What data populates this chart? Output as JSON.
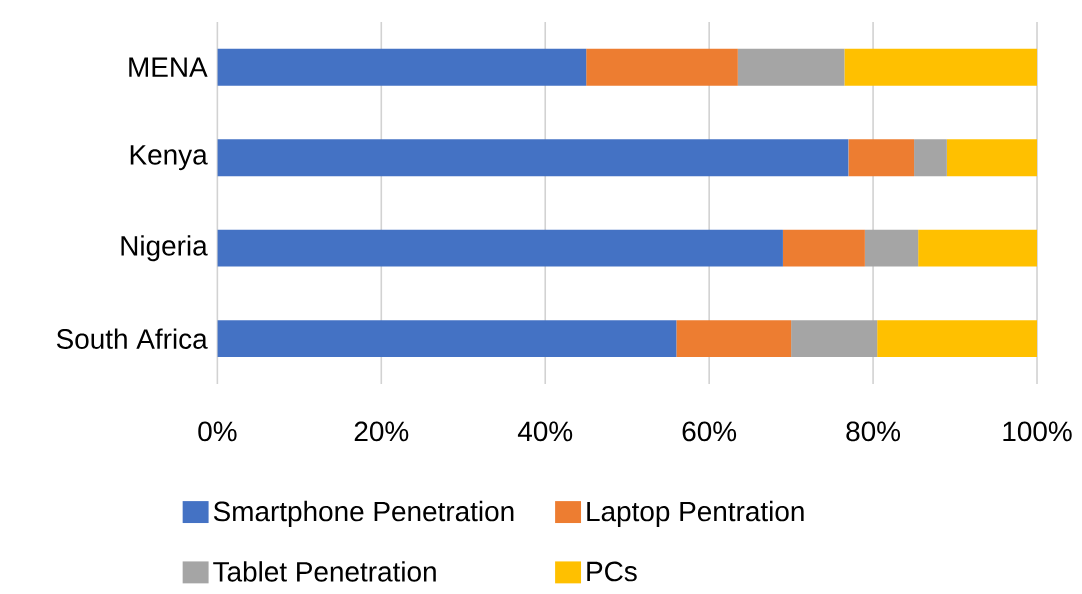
{
  "chart_data": {
    "type": "bar",
    "orientation": "horizontal",
    "stacked": true,
    "categories": [
      "MENA",
      "Kenya",
      "Nigeria",
      "South Africa"
    ],
    "series": [
      {
        "name": "Smartphone Penetration",
        "color": "#4472c4",
        "values": [
          45,
          77,
          69,
          56
        ]
      },
      {
        "name": "Laptop Pentration",
        "color": "#ed7d31",
        "values": [
          18.5,
          8,
          10,
          14
        ]
      },
      {
        "name": "Tablet Penetration",
        "color": "#a5a5a5",
        "values": [
          13,
          4,
          6.5,
          10.5
        ]
      },
      {
        "name": "PCs",
        "color": "#ffc000",
        "values": [
          23.5,
          11,
          14.5,
          19.5
        ]
      }
    ],
    "xlim": [
      0,
      100
    ],
    "xticks": [
      {
        "value": 0,
        "label": "0%"
      },
      {
        "value": 20,
        "label": "20%"
      },
      {
        "value": 40,
        "label": "40%"
      },
      {
        "value": 60,
        "label": "60%"
      },
      {
        "value": 80,
        "label": "80%"
      },
      {
        "value": 100,
        "label": "100%"
      }
    ],
    "grid": "x",
    "legend": "bottom"
  }
}
